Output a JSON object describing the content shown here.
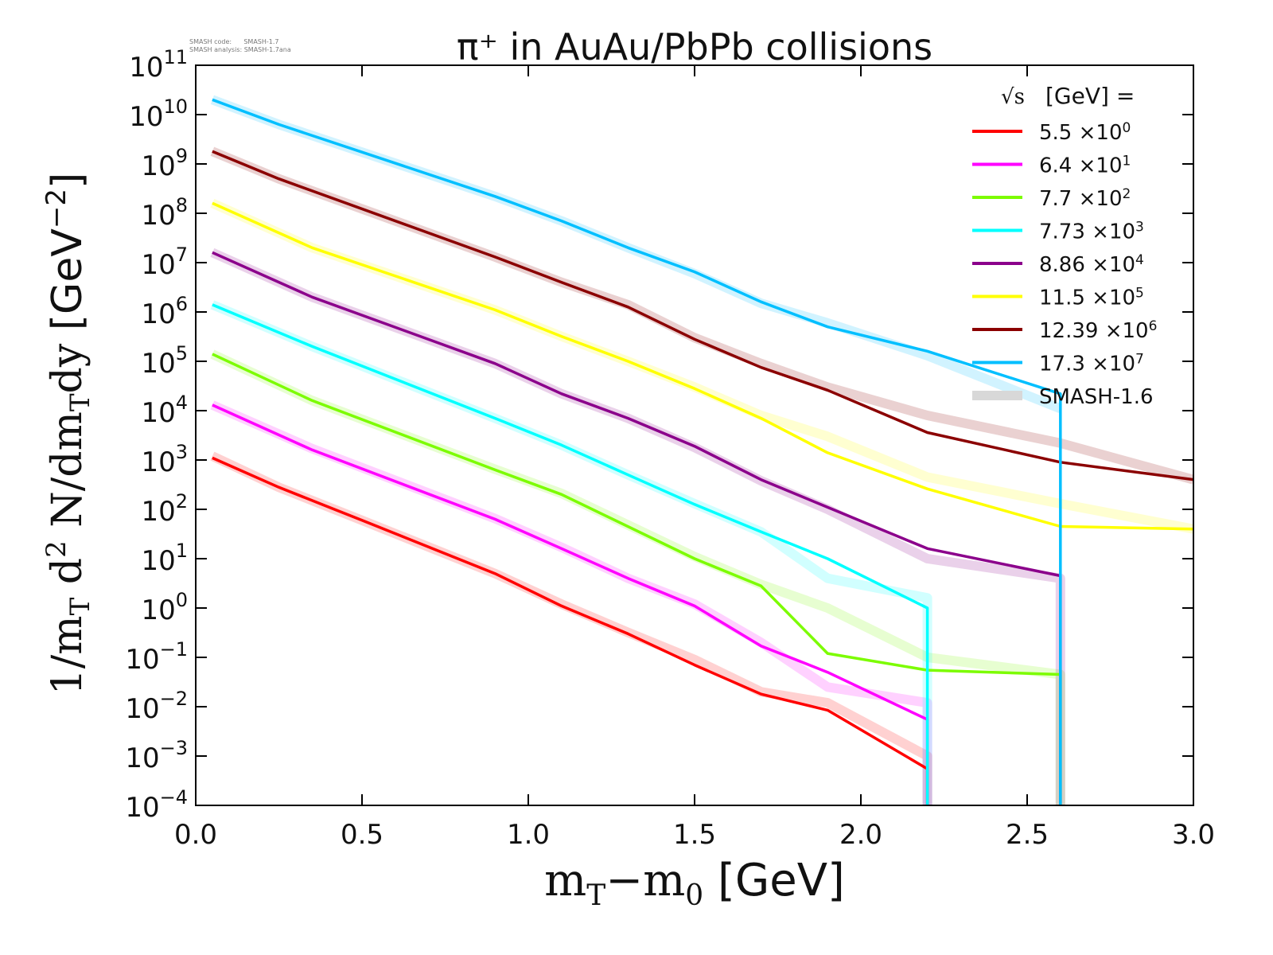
{
  "chart_data": {
    "type": "line",
    "title": "π⁺ in AuAu/PbPb collisions",
    "meta": {
      "code": "SMASH code:      SMASH-1.7",
      "analysis": "SMASH analysis: SMASH-1.7ana"
    },
    "xlabel": {
      "main": "m",
      "sub1": "T",
      "mid": "−m",
      "sub2": "0",
      "unit": " [GeV]"
    },
    "ylabel": {
      "p1": "1/m",
      "s1": "T",
      "p2": " d",
      "sup": "2",
      "p3": " N/dm",
      "s2": "T",
      "p4": "dy",
      "unit": " [GeV",
      "usup": "−2",
      "uend": "]"
    },
    "xlim": [
      0,
      3.0
    ],
    "ylim": [
      0.0001,
      100000000000.0
    ],
    "yscale": "log",
    "xticks": [
      "0.0",
      "0.5",
      "1.0",
      "1.5",
      "2.0",
      "2.5",
      "3.0"
    ],
    "yticks": {
      "base": "10",
      "exponents": [
        "11",
        "10",
        "9",
        "8",
        "7",
        "6",
        "5",
        "4",
        "3",
        "2",
        "1",
        "0",
        "−1",
        "−2",
        "−3",
        "−4"
      ]
    },
    "legend": {
      "placement": "top-right",
      "header_sqrt": "√s",
      "header_rest": "[GeV] =",
      "reference_label": "SMASH-1.6",
      "reference_color": "#d8d8d8"
    },
    "series": [
      {
        "name": "5.5",
        "label": "5.5 ×10",
        "sup": "0",
        "color": "#ff0000",
        "x": [
          0.05,
          0.25,
          0.5,
          0.9,
          1.1,
          1.3,
          1.5,
          1.7,
          1.9,
          2.2,
          2.2
        ],
        "y": [
          1100.0,
          280.0,
          60.0,
          5,
          1.1,
          0.3,
          0.07,
          0.018,
          0.0085,
          0.00055,
          1e-06
        ],
        "ref_y": [
          1200.0,
          280.0,
          60.0,
          5,
          1.2,
          0.32,
          0.09,
          0.02,
          0.012,
          0.001,
          1e-06
        ]
      },
      {
        "name": "6.4",
        "label": "6.4 ×10",
        "sup": "1",
        "color": "#ff00ff",
        "x": [
          0.05,
          0.35,
          0.9,
          1.1,
          1.3,
          1.5,
          1.7,
          1.9,
          2.2,
          2.2
        ],
        "y": [
          13000.0,
          1600.0,
          63,
          16,
          4,
          1.1,
          0.17,
          0.05,
          0.0055,
          1e-06
        ],
        "ref_y": [
          13000.0,
          1700.0,
          65,
          17,
          4,
          1.2,
          0.2,
          0.025,
          0.012,
          1e-06
        ]
      },
      {
        "name": "7.7",
        "label": "7.7 ×10",
        "sup": "2",
        "color": "#7cfc00",
        "x": [
          0.05,
          0.35,
          0.9,
          1.1,
          1.5,
          1.7,
          1.9,
          2.2,
          2.6,
          2.6
        ],
        "y": [
          140000.0,
          16000.0,
          630,
          200,
          10,
          2.8,
          0.12,
          0.055,
          0.045,
          1e-06
        ],
        "ref_y": [
          140000.0,
          16000.0,
          650,
          210,
          11,
          3,
          1.0,
          0.1,
          0.045,
          1e-06
        ]
      },
      {
        "name": "7.73",
        "label": "7.73 ×10",
        "sup": "3",
        "color": "#00ffff",
        "x": [
          0.05,
          0.35,
          0.9,
          1.1,
          1.3,
          1.5,
          1.7,
          1.9,
          2.2,
          2.2
        ],
        "y": [
          1400000.0,
          200000.0,
          7000.0,
          2000.0,
          500,
          126,
          35,
          10,
          1.0,
          1e-06
        ],
        "ref_y": [
          1400000.0,
          200000.0,
          7000.0,
          2000.0,
          500,
          130,
          35,
          4,
          1.6,
          1e-06
        ]
      },
      {
        "name": "8.86",
        "label": "8.86 ×10",
        "sup": "4",
        "color": "#8b008b",
        "x": [
          0.05,
          0.35,
          0.9,
          1.1,
          1.3,
          1.5,
          1.7,
          1.9,
          2.2,
          2.6,
          2.6
        ],
        "y": [
          16000000.0,
          2000000.0,
          90000.0,
          22000.0,
          7000.0,
          1900.0,
          400,
          110,
          16,
          4.5,
          1e-06
        ],
        "ref_y": [
          16000000.0,
          2000000.0,
          90000.0,
          22000.0,
          7000.0,
          1800.0,
          380,
          100,
          10,
          4,
          1e-06
        ]
      },
      {
        "name": "11.5",
        "label": "11.5 ×10",
        "sup": "5",
        "color": "#ffff00",
        "x": [
          0.05,
          0.35,
          0.9,
          1.1,
          1.3,
          1.5,
          1.7,
          1.9,
          2.2,
          2.6,
          3.0
        ],
        "y": [
          160000000.0,
          20000000.0,
          1100000.0,
          320000.0,
          100000.0,
          28000.0,
          7000.0,
          1400.0,
          260,
          45,
          40
        ],
        "ref_y": [
          160000000.0,
          20000000.0,
          1100000.0,
          320000.0,
          100000.0,
          30000.0,
          8000.0,
          3000.0,
          450,
          130,
          40
        ]
      },
      {
        "name": "12.39",
        "label": "12.39 ×10",
        "sup": "6",
        "color": "#8b0000",
        "x": [
          0.05,
          0.25,
          0.9,
          1.1,
          1.3,
          1.5,
          1.7,
          1.9,
          2.2,
          2.6,
          3.0
        ],
        "y": [
          1800000000.0,
          500000000.0,
          13000000.0,
          4000000.0,
          1260000.0,
          280000.0,
          75000.0,
          26000.0,
          3600.0,
          900,
          400
        ],
        "ref_y": [
          1800000000.0,
          500000000.0,
          13000000.0,
          4000000.0,
          1400000.0,
          300000.0,
          90000.0,
          30000.0,
          8000.0,
          2200.0,
          400
        ]
      },
      {
        "name": "17.3",
        "label": "17.3 ×10",
        "sup": "7",
        "color": "#00bfff",
        "x": [
          0.05,
          0.25,
          0.9,
          1.1,
          1.3,
          1.5,
          1.7,
          1.9,
          2.2,
          2.6,
          2.6
        ],
        "y": [
          20000000000.0,
          6300000000.0,
          220000000.0,
          70000000.0,
          20000000.0,
          6500000.0,
          1600000.0,
          500000.0,
          160000.0,
          22000.0,
          1e-06
        ],
        "ref_y": [
          20000000000.0,
          6300000000.0,
          220000000.0,
          70000000.0,
          20000000.0,
          6000000.0,
          1500000.0,
          600000.0,
          130000.0,
          11000.0,
          11000.0
        ]
      }
    ]
  }
}
